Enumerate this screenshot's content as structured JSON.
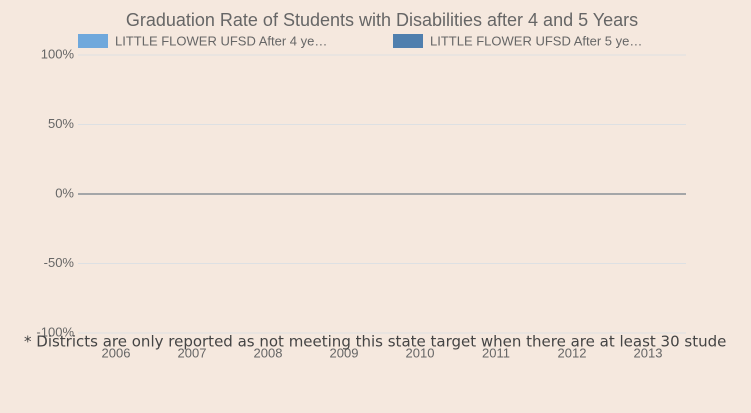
{
  "chart_data": {
    "type": "bar",
    "title": "Graduation Rate of Students with Disabilities after 4 and 5 Years",
    "categories": [
      "2006",
      "2007",
      "2008",
      "2009",
      "2010",
      "2011",
      "2012",
      "2013"
    ],
    "series": [
      {
        "name": "LITTLE FLOWER UFSD After 4 ye…",
        "color": "#6fa8dc",
        "values": [
          null,
          null,
          null,
          null,
          null,
          null,
          null,
          null
        ]
      },
      {
        "name": "LITTLE FLOWER UFSD After 5 ye…",
        "color": "#4f7fae",
        "values": [
          null,
          null,
          null,
          null,
          null,
          null,
          null,
          null
        ]
      }
    ],
    "ylim": [
      -100,
      100
    ],
    "yticks": [
      {
        "value": -100,
        "label": "-100%"
      },
      {
        "value": -50,
        "label": "-50%"
      },
      {
        "value": 0,
        "label": "0%"
      },
      {
        "value": 50,
        "label": "50%"
      },
      {
        "value": 100,
        "label": "100%"
      }
    ],
    "grid": true,
    "legend": "top",
    "footnote": "* Districts are only reported as not meeting this state target when there are at least 30 stude"
  }
}
